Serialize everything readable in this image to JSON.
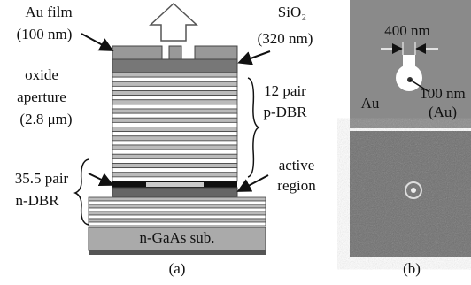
{
  "figure": {
    "panel_a": {
      "au_film": [
        "Au film",
        "(100 nm)"
      ],
      "sio2": [
        "SiO₂",
        "(320 nm)"
      ],
      "oxide_aperture": [
        "oxide",
        "aperture",
        "(2.8 μm)"
      ],
      "p_dbr": [
        "12 pair",
        "p-DBR"
      ],
      "active_region": [
        "active",
        "region"
      ],
      "n_dbr": [
        "35.5 pair",
        "n-DBR"
      ],
      "substrate": "n-GaAs sub.",
      "caption": "(a)"
    },
    "panel_b": {
      "scale": "400 nm",
      "au": "Au",
      "hole": [
        "100 nm",
        "(Au)"
      ],
      "caption": "(b)"
    }
  }
}
